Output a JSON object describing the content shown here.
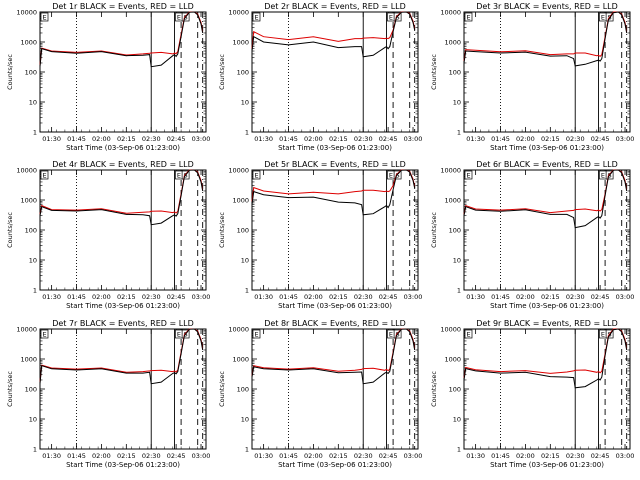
{
  "figure": {
    "tick_labels_y": [
      "1",
      "10",
      "100",
      "1000",
      "10000"
    ],
    "tick_labels_x": [
      "01:30",
      "01:45",
      "02:00",
      "02:15",
      "02:30",
      "02:45",
      "03:00"
    ],
    "ylabel": "Counts/sec",
    "xlabel": "Start Time (03-Sep-06 01:23:00)"
  },
  "chart_data": [
    {
      "type": "line",
      "title": "Det 1r BLACK = Events, RED = LLD",
      "xlabel": "Start Time (03-Sep-06 01:23:00)",
      "ylabel": "Counts/sec",
      "yscale": "log",
      "ylim": [
        1,
        10000
      ],
      "xlim": [
        "01:23",
        "03:03"
      ],
      "x": [
        "01:23",
        "01:24",
        "01:30",
        "01:45",
        "02:00",
        "02:15",
        "02:25",
        "02:29",
        "02:30",
        "02:36",
        "02:43",
        "02:44",
        "02:45",
        "02:46",
        "02:48",
        "02:50",
        "02:53",
        "02:56",
        "02:58",
        "03:00",
        "03:01"
      ],
      "series": [
        {
          "name": "BLACK = Events",
          "color": "#000000",
          "values": [
            150,
            600,
            480,
            420,
            480,
            350,
            360,
            380,
            150,
            170,
            350,
            380,
            330,
            400,
            1500,
            6000,
            9800,
            10000,
            8000,
            4000,
            2000
          ]
        },
        {
          "name": "RED = LLD",
          "color": "#dd0000",
          "values": [
            170,
            620,
            500,
            450,
            500,
            370,
            400,
            420,
            430,
            450,
            400,
            430,
            410,
            480,
            1800,
            6500,
            10000,
            10000,
            8500,
            4500,
            2200
          ]
        }
      ]
    },
    {
      "type": "line",
      "title": "Det 2r BLACK = Events, RED = LLD",
      "xlabel": "Start Time (03-Sep-06 01:23:00)",
      "ylabel": "Counts/sec",
      "yscale": "log",
      "ylim": [
        1,
        10000
      ],
      "xlim": [
        "01:23",
        "03:03"
      ],
      "x": [
        "01:23",
        "01:24",
        "01:30",
        "01:45",
        "02:00",
        "02:15",
        "02:25",
        "02:29",
        "02:30",
        "02:36",
        "02:43",
        "02:44",
        "02:45",
        "02:46",
        "02:48",
        "02:50",
        "02:53",
        "02:56",
        "02:58",
        "03:00",
        "03:01"
      ],
      "series": [
        {
          "name": "BLACK = Events",
          "color": "#000000",
          "values": [
            500,
            1500,
            1000,
            800,
            1000,
            650,
            700,
            700,
            320,
            360,
            650,
            700,
            600,
            700,
            2200,
            6500,
            9800,
            10000,
            8500,
            4500,
            2500
          ]
        },
        {
          "name": "RED = LLD",
          "color": "#dd0000",
          "values": [
            600,
            2200,
            1500,
            1200,
            1500,
            1050,
            1300,
            1300,
            1350,
            1400,
            1300,
            1350,
            1300,
            1400,
            2500,
            7000,
            10000,
            10000,
            9000,
            5000,
            2800
          ]
        }
      ]
    },
    {
      "type": "line",
      "title": "Det 3r BLACK = Events, RED = LLD",
      "xlabel": "Start Time (03-Sep-06 01:23:00)",
      "ylabel": "Counts/sec",
      "yscale": "log",
      "ylim": [
        1,
        10000
      ],
      "xlim": [
        "01:23",
        "03:03"
      ],
      "x": [
        "01:23",
        "01:24",
        "01:30",
        "01:45",
        "02:00",
        "02:15",
        "02:25",
        "02:29",
        "02:30",
        "02:36",
        "02:43",
        "02:44",
        "02:45",
        "02:46",
        "02:48",
        "02:50",
        "02:53",
        "02:56",
        "02:58",
        "03:00",
        "03:01"
      ],
      "series": [
        {
          "name": "BLACK = Events",
          "color": "#000000",
          "values": [
            200,
            500,
            480,
            430,
            460,
            340,
            350,
            280,
            160,
            180,
            240,
            250,
            230,
            280,
            1300,
            5500,
            9500,
            10000,
            8000,
            4000,
            2000
          ]
        },
        {
          "name": "RED = LLD",
          "color": "#dd0000",
          "values": [
            230,
            560,
            530,
            470,
            510,
            380,
            400,
            400,
            430,
            430,
            350,
            360,
            330,
            380,
            1500,
            6000,
            10000,
            10000,
            8500,
            4500,
            2200
          ]
        }
      ]
    },
    {
      "type": "line",
      "title": "Det 4r BLACK = Events, RED = LLD",
      "xlabel": "Start Time (03-Sep-06 01:23:00)",
      "ylabel": "Counts/sec",
      "yscale": "log",
      "ylim": [
        1,
        10000
      ],
      "xlim": [
        "01:23",
        "03:03"
      ],
      "x": [
        "01:23",
        "01:24",
        "01:30",
        "01:45",
        "02:00",
        "02:15",
        "02:25",
        "02:29",
        "02:30",
        "02:36",
        "02:43",
        "02:44",
        "02:45",
        "02:46",
        "02:48",
        "02:50",
        "02:53",
        "02:56",
        "02:58",
        "03:00",
        "03:01"
      ],
      "series": [
        {
          "name": "BLACK = Events",
          "color": "#000000",
          "values": [
            300,
            600,
            450,
            430,
            480,
            330,
            320,
            300,
            150,
            170,
            300,
            320,
            290,
            350,
            1400,
            6000,
            9800,
            10000,
            8000,
            4000,
            2000
          ]
        },
        {
          "name": "RED = LLD",
          "color": "#dd0000",
          "values": [
            330,
            650,
            480,
            460,
            510,
            360,
            390,
            400,
            420,
            430,
            380,
            400,
            370,
            420,
            1600,
            6500,
            10000,
            10000,
            8500,
            4500,
            2200
          ]
        }
      ]
    },
    {
      "type": "line",
      "title": "Det 5r BLACK = Events, RED = LLD",
      "xlabel": "Start Time (03-Sep-06 01:23:00)",
      "ylabel": "Counts/sec",
      "yscale": "log",
      "ylim": [
        1,
        10000
      ],
      "xlim": [
        "01:23",
        "03:03"
      ],
      "x": [
        "01:23",
        "01:24",
        "01:30",
        "01:45",
        "02:00",
        "02:15",
        "02:25",
        "02:29",
        "02:30",
        "02:36",
        "02:43",
        "02:44",
        "02:45",
        "02:46",
        "02:48",
        "02:50",
        "02:53",
        "02:56",
        "02:58",
        "03:00",
        "03:01"
      ],
      "series": [
        {
          "name": "BLACK = Events",
          "color": "#000000",
          "values": [
            700,
            1900,
            1500,
            1200,
            1250,
            850,
            800,
            700,
            320,
            350,
            600,
            650,
            560,
            700,
            2200,
            6500,
            9800,
            10000,
            8500,
            4500,
            2500
          ]
        },
        {
          "name": "RED = LLD",
          "color": "#dd0000",
          "values": [
            900,
            2600,
            2000,
            1600,
            1800,
            1600,
            1900,
            2000,
            2100,
            2100,
            1900,
            2000,
            1900,
            2000,
            3000,
            7000,
            10000,
            10000,
            9000,
            5000,
            2800
          ]
        }
      ]
    },
    {
      "type": "line",
      "title": "Det 6r BLACK = Events, RED = LLD",
      "xlabel": "Start Time (03-Sep-06 01:23:00)",
      "ylabel": "Counts/sec",
      "yscale": "log",
      "ylim": [
        1,
        10000
      ],
      "xlim": [
        "01:23",
        "03:03"
      ],
      "x": [
        "01:23",
        "01:24",
        "01:30",
        "01:45",
        "02:00",
        "02:15",
        "02:25",
        "02:29",
        "02:30",
        "02:36",
        "02:43",
        "02:44",
        "02:45",
        "02:46",
        "02:48",
        "02:50",
        "02:53",
        "02:56",
        "02:58",
        "03:00",
        "03:01"
      ],
      "series": [
        {
          "name": "BLACK = Events",
          "color": "#000000",
          "values": [
            300,
            600,
            460,
            420,
            470,
            330,
            330,
            260,
            120,
            140,
            260,
            280,
            250,
            300,
            1400,
            6000,
            9800,
            10000,
            8000,
            4000,
            2000
          ]
        },
        {
          "name": "RED = LLD",
          "color": "#dd0000",
          "values": [
            330,
            650,
            500,
            460,
            510,
            380,
            430,
            450,
            480,
            500,
            440,
            460,
            430,
            480,
            1600,
            6500,
            10000,
            10000,
            8500,
            4500,
            2200
          ]
        }
      ]
    },
    {
      "type": "line",
      "title": "Det 7r BLACK = Events, RED = LLD",
      "xlabel": "Start Time (03-Sep-06 01:23:00)",
      "ylabel": "Counts/sec",
      "yscale": "log",
      "ylim": [
        1,
        10000
      ],
      "xlim": [
        "01:23",
        "03:03"
      ],
      "x": [
        "01:23",
        "01:24",
        "01:30",
        "01:45",
        "02:00",
        "02:15",
        "02:25",
        "02:29",
        "02:30",
        "02:36",
        "02:43",
        "02:44",
        "02:45",
        "02:46",
        "02:48",
        "02:50",
        "02:53",
        "02:56",
        "02:58",
        "03:00",
        "03:01"
      ],
      "series": [
        {
          "name": "BLACK = Events",
          "color": "#000000",
          "values": [
            150,
            600,
            470,
            430,
            470,
            340,
            340,
            360,
            150,
            170,
            330,
            350,
            320,
            380,
            1500,
            6000,
            9800,
            10000,
            8000,
            4000,
            2000
          ]
        },
        {
          "name": "RED = LLD",
          "color": "#dd0000",
          "values": [
            170,
            620,
            500,
            460,
            500,
            360,
            380,
            400,
            410,
            420,
            380,
            400,
            370,
            430,
            1700,
            6500,
            10000,
            10000,
            8500,
            4500,
            2200
          ]
        }
      ]
    },
    {
      "type": "line",
      "title": "Det 8r BLACK = Events, RED = LLD",
      "xlabel": "Start Time (03-Sep-06 01:23:00)",
      "ylabel": "Counts/sec",
      "yscale": "log",
      "ylim": [
        1,
        10000
      ],
      "xlim": [
        "01:23",
        "03:03"
      ],
      "x": [
        "01:23",
        "01:24",
        "01:30",
        "01:45",
        "02:00",
        "02:15",
        "02:25",
        "02:29",
        "02:30",
        "02:36",
        "02:43",
        "02:44",
        "02:45",
        "02:46",
        "02:48",
        "02:50",
        "02:53",
        "02:56",
        "02:58",
        "03:00",
        "03:01"
      ],
      "series": [
        {
          "name": "BLACK = Events",
          "color": "#000000",
          "values": [
            250,
            550,
            470,
            430,
            470,
            350,
            360,
            370,
            150,
            170,
            340,
            360,
            330,
            390,
            1500,
            6000,
            9800,
            10000,
            8000,
            4000,
            2000
          ]
        },
        {
          "name": "RED = LLD",
          "color": "#dd0000",
          "values": [
            280,
            600,
            510,
            460,
            510,
            390,
            420,
            450,
            480,
            490,
            420,
            450,
            410,
            460,
            1700,
            6500,
            10000,
            10000,
            8500,
            4500,
            2200
          ]
        }
      ]
    },
    {
      "type": "line",
      "title": "Det 9r BLACK = Events, RED = LLD",
      "xlabel": "Start Time (03-Sep-06 01:23:00)",
      "ylabel": "Counts/sec",
      "yscale": "log",
      "ylim": [
        1,
        10000
      ],
      "xlim": [
        "01:23",
        "03:03"
      ],
      "x": [
        "01:23",
        "01:24",
        "01:30",
        "01:45",
        "02:00",
        "02:15",
        "02:25",
        "02:29",
        "02:30",
        "02:36",
        "02:43",
        "02:44",
        "02:45",
        "02:46",
        "02:48",
        "02:50",
        "02:53",
        "02:56",
        "02:58",
        "03:00",
        "03:01"
      ],
      "series": [
        {
          "name": "BLACK = Events",
          "color": "#000000",
          "values": [
            200,
            480,
            400,
            340,
            360,
            260,
            250,
            240,
            110,
            120,
            200,
            220,
            200,
            250,
            1300,
            5500,
            9500,
            10000,
            8000,
            4000,
            2000
          ]
        },
        {
          "name": "RED = LLD",
          "color": "#dd0000",
          "values": [
            230,
            520,
            440,
            380,
            410,
            330,
            370,
            400,
            420,
            430,
            360,
            380,
            350,
            390,
            1500,
            6000,
            10000,
            10000,
            8500,
            4500,
            2200
          ]
        }
      ]
    }
  ],
  "markers": {
    "vertical_lines": [
      {
        "time": "01:45",
        "style": "dotted"
      },
      {
        "time": "02:30",
        "style": "solid"
      },
      {
        "time": "02:44",
        "style": "solid"
      },
      {
        "time": "02:48",
        "style": "dashed"
      },
      {
        "time": "02:58",
        "style": "dashed"
      },
      {
        "time": "03:01",
        "style": "dash-dot"
      }
    ],
    "flag_letters": [
      {
        "time": "01:23",
        "text": "E"
      },
      {
        "time": "02:44",
        "text": "E"
      },
      {
        "time": "02:48",
        "text": "S"
      }
    ]
  }
}
